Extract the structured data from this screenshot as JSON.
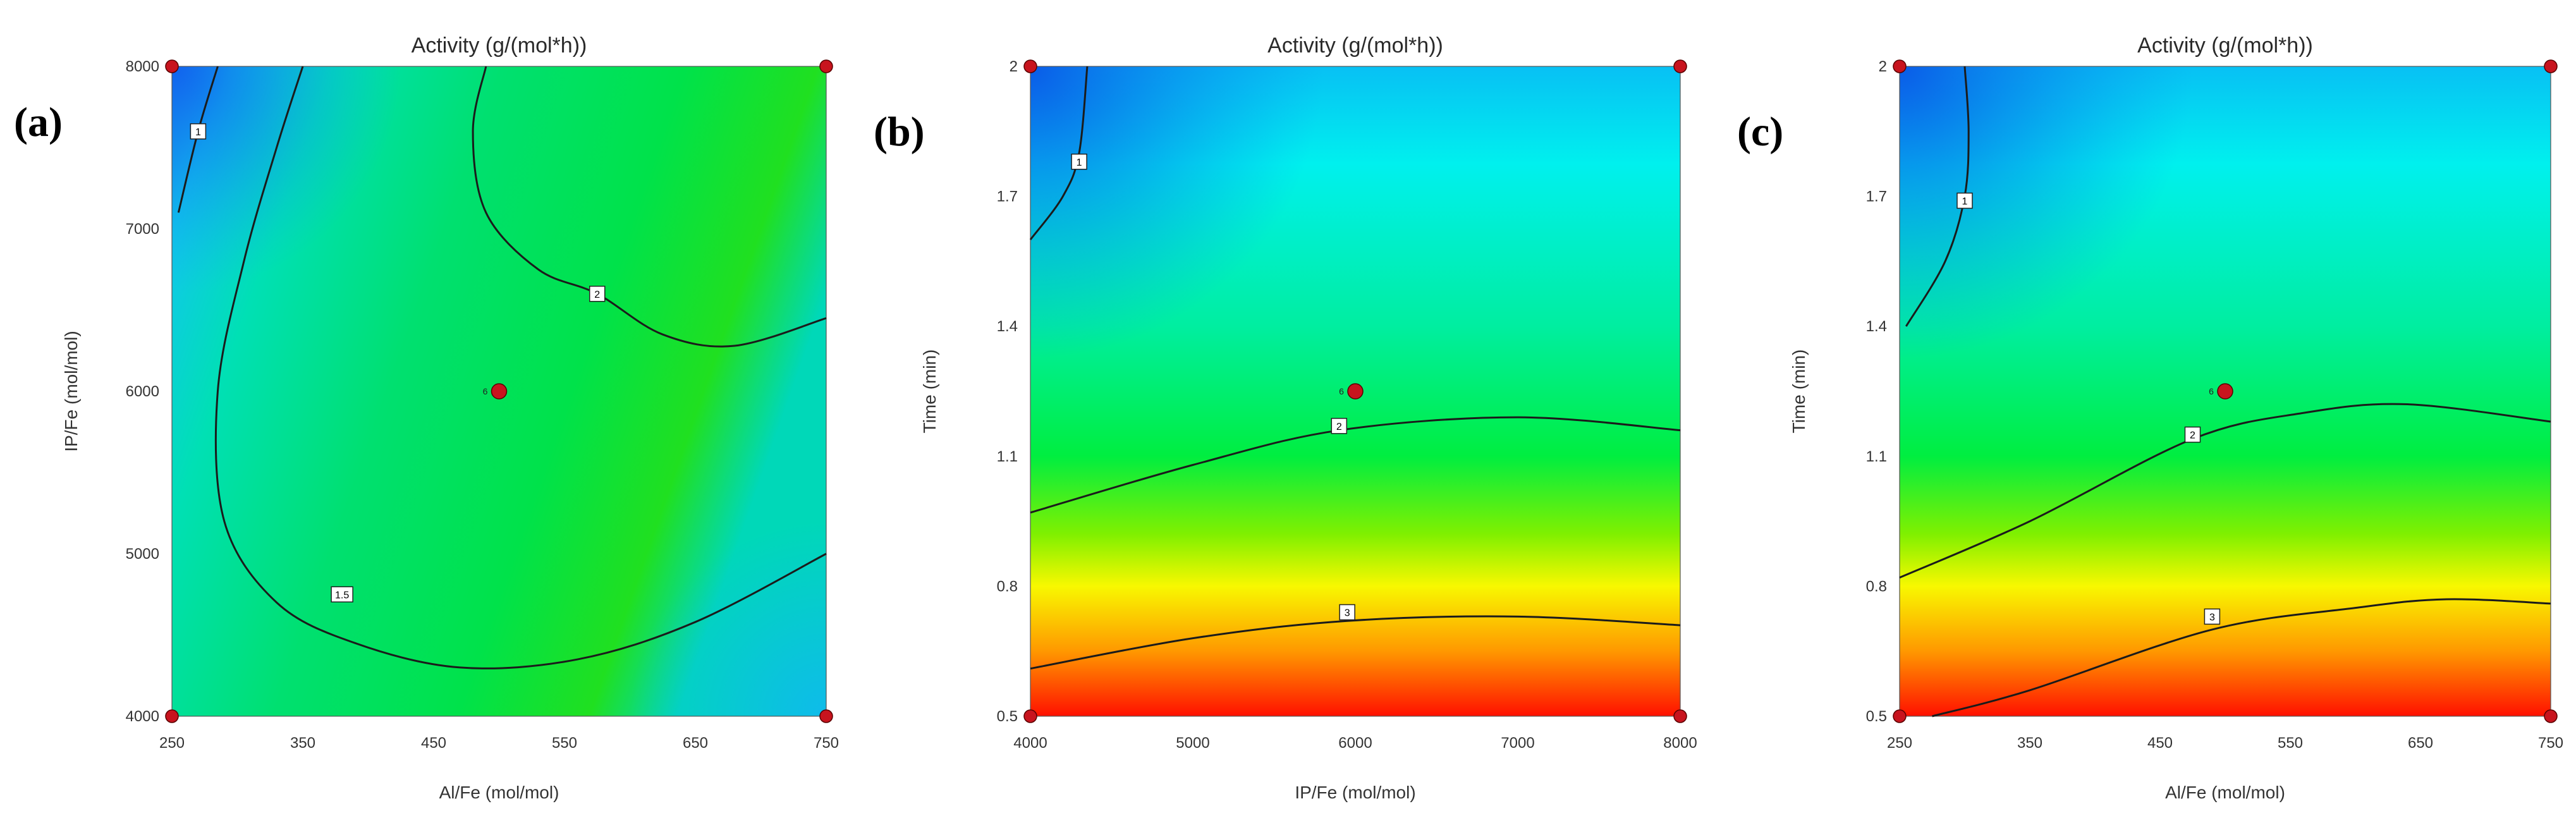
{
  "chart_data": [
    {
      "type": "contour",
      "panel_label": "(a)",
      "title": "Activity (g/(mol*h))",
      "xlabel": "Al/Fe (mol/mol)",
      "ylabel": "IP/Fe (mol/mol)",
      "xlim": [
        250,
        750
      ],
      "ylim": [
        4000,
        8000
      ],
      "xticks": [
        "250",
        "350",
        "450",
        "550",
        "650",
        "750"
      ],
      "yticks": [
        "4000",
        "5000",
        "6000",
        "7000",
        "8000"
      ],
      "design_points": [
        [
          250,
          4000
        ],
        [
          750,
          4000
        ],
        [
          250,
          8000
        ],
        [
          750,
          8000
        ]
      ],
      "center_point": {
        "x": 500,
        "y": 6000,
        "label": "6"
      },
      "contours": [
        {
          "label": "1",
          "points": [
            [
              255,
              7100
            ],
            [
              270,
              7600
            ],
            [
              285,
              8000
            ]
          ],
          "label_at": [
            270,
            7600
          ]
        },
        {
          "label": "1.5",
          "points": [
            [
              350,
              8000
            ],
            [
              330,
              7500
            ],
            [
              305,
              6800
            ],
            [
              285,
              6000
            ],
            [
              290,
              5200
            ],
            [
              330,
              4700
            ],
            [
              390,
              4450
            ],
            [
              470,
              4300
            ],
            [
              560,
              4350
            ],
            [
              650,
              4580
            ],
            [
              750,
              5000
            ]
          ],
          "label_at": [
            380,
            4750
          ]
        },
        {
          "label": "2",
          "points": [
            [
              490,
              8000
            ],
            [
              480,
              7600
            ],
            [
              490,
              7100
            ],
            [
              530,
              6750
            ],
            [
              575,
              6600
            ],
            [
              625,
              6350
            ],
            [
              680,
              6280
            ],
            [
              750,
              6450
            ]
          ],
          "label_at": [
            575,
            6600
          ]
        }
      ]
    },
    {
      "type": "contour",
      "panel_label": "(b)",
      "title": "Activity (g/(mol*h))",
      "xlabel": "IP/Fe (mol/mol)",
      "ylabel": "Time (min)",
      "xlim": [
        4000,
        8000
      ],
      "ylim": [
        0.5,
        2
      ],
      "xticks": [
        "4000",
        "5000",
        "6000",
        "7000",
        "8000"
      ],
      "yticks": [
        "0.5",
        "0.8",
        "1.1",
        "1.4",
        "1.7",
        "2"
      ],
      "design_points": [
        [
          4000,
          0.5
        ],
        [
          8000,
          0.5
        ],
        [
          4000,
          2
        ],
        [
          8000,
          2
        ]
      ],
      "center_point": {
        "x": 6000,
        "y": 1.25,
        "label": "6"
      },
      "contours": [
        {
          "label": "1",
          "points": [
            [
              4000,
              1.6
            ],
            [
              4200,
              1.7
            ],
            [
              4300,
              1.8
            ],
            [
              4350,
              2
            ]
          ],
          "label_at": [
            4300,
            1.78
          ]
        },
        {
          "label": "2",
          "points": [
            [
              4000,
              0.97
            ],
            [
              5000,
              1.08
            ],
            [
              5900,
              1.16
            ],
            [
              7000,
              1.19
            ],
            [
              8000,
              1.16
            ]
          ],
          "label_at": [
            5900,
            1.17
          ]
        },
        {
          "label": "3",
          "points": [
            [
              4000,
              0.61
            ],
            [
              5000,
              0.68
            ],
            [
              5950,
              0.72
            ],
            [
              7000,
              0.73
            ],
            [
              8000,
              0.71
            ]
          ],
          "label_at": [
            5950,
            0.74
          ]
        }
      ]
    },
    {
      "type": "contour",
      "panel_label": "(c)",
      "title": "Activity (g/(mol*h))",
      "xlabel": "Al/Fe (mol/mol)",
      "ylabel": "Time (min)",
      "xlim": [
        250,
        750
      ],
      "ylim": [
        0.5,
        2
      ],
      "xticks": [
        "250",
        "350",
        "450",
        "550",
        "650",
        "750"
      ],
      "yticks": [
        "0.5",
        "0.8",
        "1.1",
        "1.4",
        "1.7",
        "2"
      ],
      "design_points": [
        [
          250,
          0.5
        ],
        [
          750,
          0.5
        ],
        [
          250,
          2
        ],
        [
          750,
          2
        ]
      ],
      "center_point": {
        "x": 500,
        "y": 1.25,
        "label": "6"
      },
      "contours": [
        {
          "label": "1",
          "points": [
            [
              255,
              1.4
            ],
            [
              285,
              1.55
            ],
            [
              300,
              1.7
            ],
            [
              303,
              1.85
            ],
            [
              300,
              2
            ]
          ],
          "label_at": [
            300,
            1.69
          ]
        },
        {
          "label": "2",
          "points": [
            [
              250,
              0.82
            ],
            [
              350,
              0.95
            ],
            [
              475,
              1.14
            ],
            [
              560,
              1.2
            ],
            [
              640,
              1.22
            ],
            [
              750,
              1.18
            ]
          ],
          "label_at": [
            475,
            1.15
          ]
        },
        {
          "label": "3",
          "points": [
            [
              275,
              0.5
            ],
            [
              350,
              0.56
            ],
            [
              490,
              0.7
            ],
            [
              600,
              0.75
            ],
            [
              670,
              0.77
            ],
            [
              750,
              0.76
            ]
          ],
          "label_at": [
            490,
            0.73
          ]
        }
      ]
    }
  ]
}
